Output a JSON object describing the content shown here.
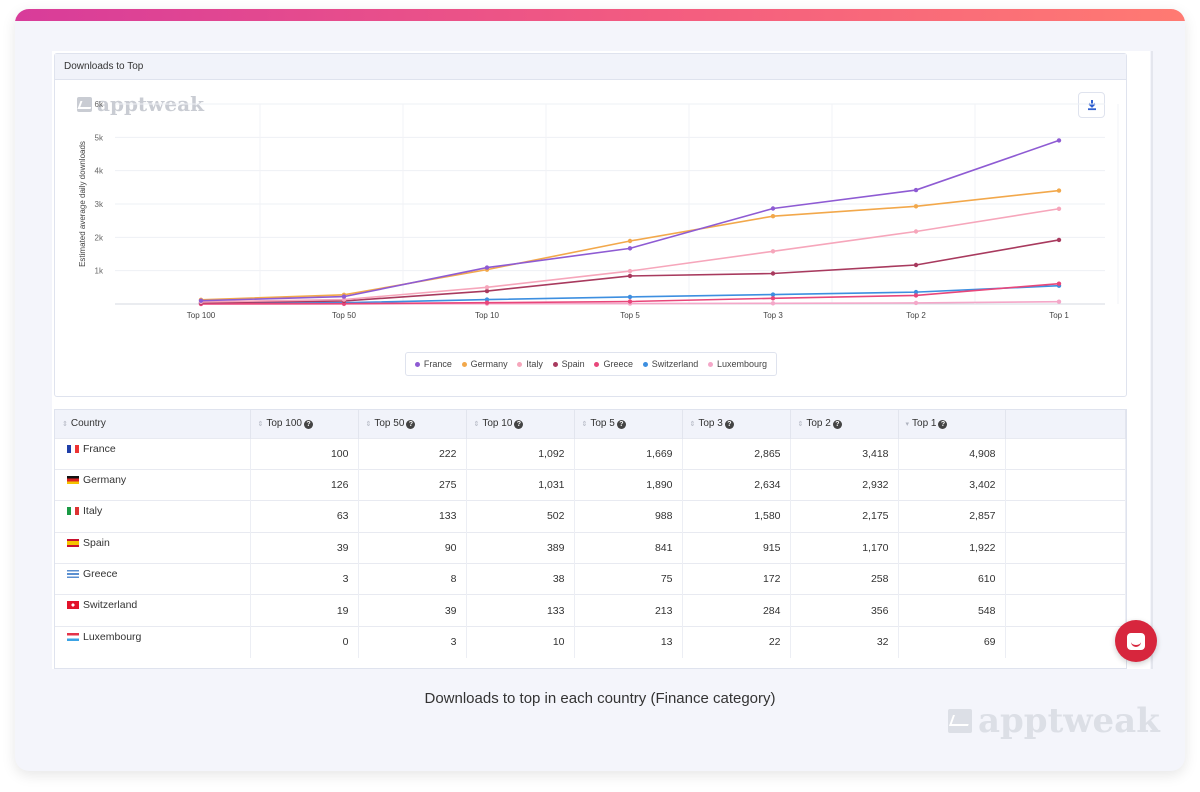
{
  "panel": {
    "title": "Downloads to Top",
    "logo_text": "apptweak",
    "download_icon": "download-icon"
  },
  "chart_data": {
    "type": "line",
    "ylabel": "Estimated average daily downloads",
    "xlabel": "",
    "categories": [
      "Top 100",
      "Top 50",
      "Top 10",
      "Top 5",
      "Top 3",
      "Top 2",
      "Top 1"
    ],
    "y_ticks": [
      "1k",
      "2k",
      "3k",
      "4k",
      "5k",
      "6k"
    ],
    "ylim": [
      0,
      6000
    ],
    "legend_position": "bottom",
    "series": [
      {
        "name": "France",
        "color": "#8e5bd3",
        "values": [
          100,
          222,
          1092,
          1669,
          2865,
          3418,
          4908
        ]
      },
      {
        "name": "Germany",
        "color": "#f2a84b",
        "values": [
          126,
          275,
          1031,
          1890,
          2634,
          2932,
          3402
        ]
      },
      {
        "name": "Italy",
        "color": "#f6a6bb",
        "values": [
          63,
          133,
          502,
          988,
          1580,
          2175,
          2857
        ]
      },
      {
        "name": "Spain",
        "color": "#a83a5e",
        "values": [
          39,
          90,
          389,
          841,
          915,
          1170,
          1922
        ]
      },
      {
        "name": "Greece",
        "color": "#e8467a",
        "values": [
          3,
          8,
          38,
          75,
          172,
          258,
          610
        ]
      },
      {
        "name": "Switzerland",
        "color": "#3d8fe0",
        "values": [
          19,
          39,
          133,
          213,
          284,
          356,
          548
        ]
      },
      {
        "name": "Luxembourg",
        "color": "#f4a7c8",
        "values": [
          0,
          3,
          10,
          13,
          22,
          32,
          69
        ]
      }
    ]
  },
  "table": {
    "country_header": "Country",
    "headers": [
      "Top 100",
      "Top 50",
      "Top 10",
      "Top 5",
      "Top 3",
      "Top 2",
      "Top 1"
    ],
    "rows": [
      {
        "country": "France",
        "values": [
          "100",
          "222",
          "1,092",
          "1,669",
          "2,865",
          "3,418",
          "4,908"
        ]
      },
      {
        "country": "Germany",
        "values": [
          "126",
          "275",
          "1,031",
          "1,890",
          "2,634",
          "2,932",
          "3,402"
        ]
      },
      {
        "country": "Italy",
        "values": [
          "63",
          "133",
          "502",
          "988",
          "1,580",
          "2,175",
          "2,857"
        ]
      },
      {
        "country": "Spain",
        "values": [
          "39",
          "90",
          "389",
          "841",
          "915",
          "1,170",
          "1,922"
        ]
      },
      {
        "country": "Greece",
        "values": [
          "3",
          "8",
          "38",
          "75",
          "172",
          "258",
          "610"
        ]
      },
      {
        "country": "Switzerland",
        "values": [
          "19",
          "39",
          "133",
          "213",
          "284",
          "356",
          "548"
        ]
      },
      {
        "country": "Luxembourg",
        "values": [
          "0",
          "3",
          "10",
          "13",
          "22",
          "32",
          "69"
        ]
      }
    ]
  },
  "caption": "Downloads to top in each country  (Finance category)",
  "footer_logo": "apptweak",
  "chat_icon": "chat-icon"
}
